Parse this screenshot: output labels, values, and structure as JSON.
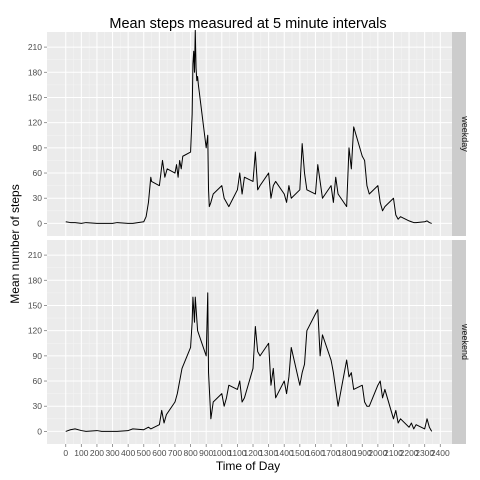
{
  "chart_data": {
    "type": "line",
    "title": "Mean steps measured at 5 minute intervals",
    "xlabel": "Time of Day",
    "ylabel": "Mean number of steps",
    "xlim": [
      -120,
      2475
    ],
    "ylim": [
      -15,
      228
    ],
    "x_ticks": [
      0,
      100,
      200,
      300,
      400,
      500,
      600,
      700,
      800,
      900,
      1000,
      1100,
      1200,
      1300,
      1400,
      1500,
      1600,
      1700,
      1800,
      1900,
      2000,
      2100,
      2200,
      2300,
      2400
    ],
    "y_ticks": [
      0,
      30,
      60,
      90,
      120,
      150,
      180,
      210
    ],
    "grid": true,
    "panels": [
      {
        "name": "weekday",
        "series": [
          {
            "x": [
              0,
              30,
              60,
              100,
              130,
              200,
              230,
              300,
              330,
              400,
              430,
              500,
              515,
              530,
              545,
              550,
              600,
              610,
              620,
              635,
              650,
              700,
              710,
              720,
              730,
              740,
              750,
              800,
              810,
              815,
              820,
              825,
              830,
              835,
              840,
              845,
              850,
              900,
              910,
              915,
              920,
              930,
              945,
              1000,
              1015,
              1030,
              1045,
              1100,
              1115,
              1130,
              1145,
              1200,
              1215,
              1230,
              1245,
              1300,
              1315,
              1330,
              1345,
              1400,
              1415,
              1430,
              1445,
              1500,
              1515,
              1530,
              1545,
              1600,
              1615,
              1630,
              1645,
              1700,
              1715,
              1730,
              1745,
              1800,
              1815,
              1830,
              1845,
              1900,
              1915,
              1930,
              1945,
              2000,
              2015,
              2030,
              2045,
              2100,
              2115,
              2130,
              2145,
              2200,
              2215,
              2230,
              2245,
              2300,
              2315,
              2330,
              2345
            ],
            "values": [
              2,
              1,
              1,
              0,
              1,
              0,
              0,
              0,
              1,
              0,
              0,
              2,
              8,
              25,
              55,
              50,
              45,
              60,
              75,
              55,
              65,
              60,
              70,
              55,
              75,
              65,
              80,
              85,
              130,
              190,
              205,
              180,
              230,
              185,
              170,
              175,
              165,
              90,
              105,
              40,
              20,
              25,
              35,
              45,
              30,
              25,
              20,
              40,
              60,
              35,
              55,
              50,
              85,
              40,
              45,
              60,
              30,
              45,
              50,
              35,
              25,
              45,
              30,
              40,
              95,
              60,
              40,
              35,
              70,
              50,
              30,
              45,
              25,
              55,
              35,
              20,
              90,
              65,
              115,
              80,
              75,
              45,
              35,
              45,
              25,
              15,
              20,
              30,
              10,
              5,
              8,
              3,
              2,
              1,
              1,
              2,
              3,
              1,
              0
            ]
          }
        ]
      },
      {
        "name": "weekend",
        "series": [
          {
            "x": [
              0,
              30,
              60,
              100,
              130,
              200,
              230,
              300,
              330,
              400,
              430,
              500,
              530,
              545,
              600,
              615,
              630,
              645,
              700,
              715,
              730,
              745,
              800,
              810,
              815,
              820,
              825,
              830,
              845,
              900,
              910,
              915,
              930,
              945,
              1000,
              1015,
              1030,
              1045,
              1100,
              1115,
              1130,
              1145,
              1200,
              1215,
              1230,
              1245,
              1300,
              1315,
              1330,
              1345,
              1400,
              1415,
              1430,
              1445,
              1500,
              1515,
              1530,
              1545,
              1600,
              1615,
              1630,
              1645,
              1700,
              1715,
              1730,
              1745,
              1800,
              1815,
              1830,
              1845,
              1900,
              1915,
              1930,
              1945,
              2000,
              2015,
              2030,
              2045,
              2100,
              2115,
              2130,
              2145,
              2200,
              2215,
              2230,
              2245,
              2300,
              2315,
              2330,
              2345
            ],
            "values": [
              0,
              2,
              3,
              1,
              0,
              1,
              0,
              0,
              0,
              1,
              3,
              2,
              5,
              3,
              8,
              25,
              10,
              20,
              35,
              45,
              60,
              75,
              100,
              130,
              160,
              145,
              130,
              160,
              120,
              90,
              165,
              70,
              15,
              35,
              45,
              30,
              40,
              55,
              50,
              60,
              35,
              40,
              75,
              125,
              95,
              90,
              105,
              55,
              75,
              40,
              60,
              45,
              65,
              100,
              55,
              70,
              80,
              120,
              140,
              145,
              90,
              115,
              85,
              70,
              50,
              30,
              85,
              65,
              70,
              50,
              55,
              35,
              30,
              30,
              55,
              60,
              40,
              50,
              15,
              25,
              10,
              15,
              5,
              10,
              3,
              8,
              3,
              15,
              5,
              0
            ]
          }
        ]
      }
    ]
  }
}
